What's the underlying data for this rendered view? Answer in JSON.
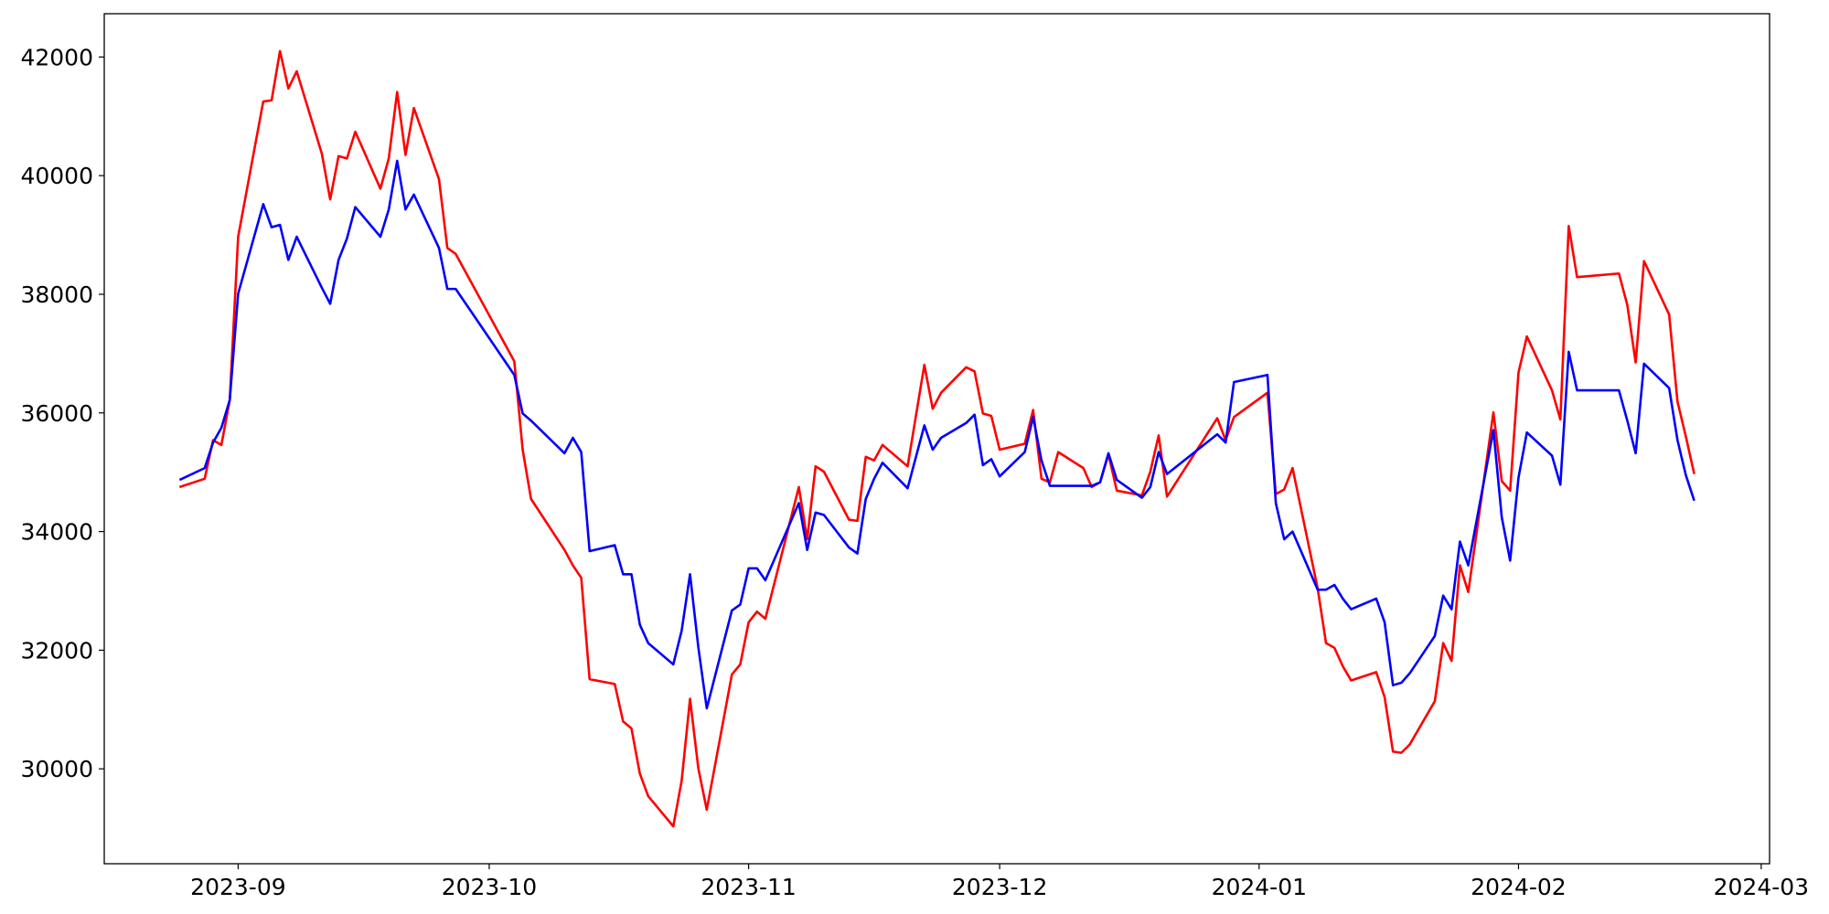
{
  "chart_data": {
    "type": "line",
    "x": [
      "2023-08-25",
      "2023-08-28",
      "2023-08-29",
      "2023-08-30",
      "2023-08-31",
      "2023-09-01",
      "2023-09-04",
      "2023-09-05",
      "2023-09-06",
      "2023-09-07",
      "2023-09-08",
      "2023-09-11",
      "2023-09-12",
      "2023-09-13",
      "2023-09-14",
      "2023-09-15",
      "2023-09-18",
      "2023-09-19",
      "2023-09-20",
      "2023-09-21",
      "2023-09-22",
      "2023-09-25",
      "2023-09-26",
      "2023-09-27",
      "2023-10-04",
      "2023-10-05",
      "2023-10-06",
      "2023-10-10",
      "2023-10-11",
      "2023-10-12",
      "2023-10-13",
      "2023-10-16",
      "2023-10-17",
      "2023-10-18",
      "2023-10-19",
      "2023-10-20",
      "2023-10-23",
      "2023-10-24",
      "2023-10-25",
      "2023-10-26",
      "2023-10-27",
      "2023-10-30",
      "2023-10-31",
      "2023-11-01",
      "2023-11-02",
      "2023-11-03",
      "2023-11-07",
      "2023-11-08",
      "2023-11-09",
      "2023-11-10",
      "2023-11-13",
      "2023-11-14",
      "2023-11-15",
      "2023-11-16",
      "2023-11-17",
      "2023-11-20",
      "2023-11-22",
      "2023-11-23",
      "2023-11-24",
      "2023-11-27",
      "2023-11-28",
      "2023-11-29",
      "2023-11-30",
      "2023-12-01",
      "2023-12-04",
      "2023-12-05",
      "2023-12-06",
      "2023-12-07",
      "2023-12-08",
      "2023-12-11",
      "2023-12-12",
      "2023-12-13",
      "2023-12-14",
      "2023-12-15",
      "2023-12-18",
      "2023-12-19",
      "2023-12-20",
      "2023-12-21",
      "2023-12-27",
      "2023-12-28",
      "2023-12-29",
      "2024-01-02",
      "2024-01-03",
      "2024-01-04",
      "2024-01-05",
      "2024-01-08",
      "2024-01-09",
      "2024-01-10",
      "2024-01-11",
      "2024-01-12",
      "2024-01-15",
      "2024-01-16",
      "2024-01-17",
      "2024-01-18",
      "2024-01-19",
      "2024-01-22",
      "2024-01-23",
      "2024-01-24",
      "2024-01-25",
      "2024-01-26",
      "2024-01-29",
      "2024-01-30",
      "2024-01-31",
      "2024-02-01",
      "2024-02-02",
      "2024-02-05",
      "2024-02-06",
      "2024-02-07",
      "2024-02-08",
      "2024-02-13",
      "2024-02-14",
      "2024-02-15",
      "2024-02-16",
      "2024-02-19",
      "2024-02-20",
      "2024-02-21",
      "2024-02-22"
    ],
    "series": [
      {
        "color": "#ff0000",
        "values": [
          34750,
          34890,
          35540,
          35460,
          36220,
          38970,
          41250,
          41270,
          42100,
          41470,
          41760,
          40370,
          39600,
          40330,
          40290,
          40740,
          39780,
          40290,
          41410,
          40350,
          41140,
          39940,
          38780,
          38680,
          36870,
          35380,
          34550,
          33690,
          33430,
          33220,
          31510,
          31430,
          30800,
          30680,
          29920,
          29540,
          29030,
          29800,
          31180,
          30000,
          29310,
          31590,
          31760,
          32470,
          32650,
          32530,
          34750,
          33870,
          35100,
          35010,
          34200,
          34180,
          35260,
          35200,
          35460,
          35100,
          36810,
          36070,
          36340,
          36770,
          36700,
          35990,
          35950,
          35380,
          35480,
          36050,
          34890,
          34830,
          35340,
          35070,
          34750,
          34830,
          35300,
          34690,
          34610,
          35010,
          35620,
          34590,
          35910,
          35540,
          35930,
          36340,
          34630,
          34710,
          35070,
          33040,
          32120,
          32040,
          31730,
          31490,
          31630,
          31210,
          30290,
          30270,
          30410,
          31140,
          32120,
          31820,
          33430,
          32980,
          36010,
          34850,
          34690,
          36680,
          37290,
          36380,
          35890,
          39150,
          38290,
          38350,
          37820,
          36850,
          38560,
          37660,
          36190,
          35600,
          34970
        ]
      },
      {
        "color": "#0000ff",
        "values": [
          34870,
          35070,
          35500,
          35750,
          36220,
          38010,
          39520,
          39130,
          39170,
          38580,
          38970,
          38110,
          37840,
          38580,
          38940,
          39470,
          38970,
          39430,
          40250,
          39430,
          39680,
          38780,
          38090,
          38090,
          36640,
          35990,
          35870,
          35320,
          35580,
          35340,
          33670,
          33770,
          33280,
          33280,
          32430,
          32120,
          31760,
          32330,
          33280,
          32040,
          31020,
          32670,
          32770,
          33380,
          33380,
          33180,
          34480,
          33690,
          34320,
          34280,
          33730,
          33630,
          34550,
          34890,
          35160,
          34730,
          35790,
          35380,
          35580,
          35830,
          35970,
          35120,
          35220,
          34930,
          35340,
          35930,
          35200,
          34770,
          34770,
          34770,
          34770,
          34830,
          35320,
          34870,
          34570,
          34750,
          35340,
          34970,
          35640,
          35500,
          36520,
          36640,
          34480,
          33870,
          34000,
          33020,
          33020,
          33100,
          32870,
          32690,
          32870,
          32470,
          31410,
          31450,
          31610,
          32240,
          32920,
          32690,
          33830,
          33430,
          35710,
          34240,
          33510,
          34910,
          35670,
          35280,
          34790,
          37030,
          36380,
          36380,
          35870,
          35320,
          36830,
          36420,
          35540,
          34950,
          34520
        ]
      }
    ],
    "xlim": [
      "2023-08-16",
      "2024-03-02"
    ],
    "xticks": [
      {
        "value": "2023-09-01",
        "label": "2023-09"
      },
      {
        "value": "2023-10-01",
        "label": "2023-10"
      },
      {
        "value": "2023-11-01",
        "label": "2023-11"
      },
      {
        "value": "2023-12-01",
        "label": "2023-12"
      },
      {
        "value": "2024-01-01",
        "label": "2024-01"
      },
      {
        "value": "2024-02-01",
        "label": "2024-02"
      },
      {
        "value": "2024-03-01",
        "label": "2024-03"
      }
    ],
    "ylim": [
      28400,
      42730
    ],
    "yticks": [
      30000,
      32000,
      34000,
      36000,
      38000,
      40000,
      42000
    ],
    "grid": false
  }
}
